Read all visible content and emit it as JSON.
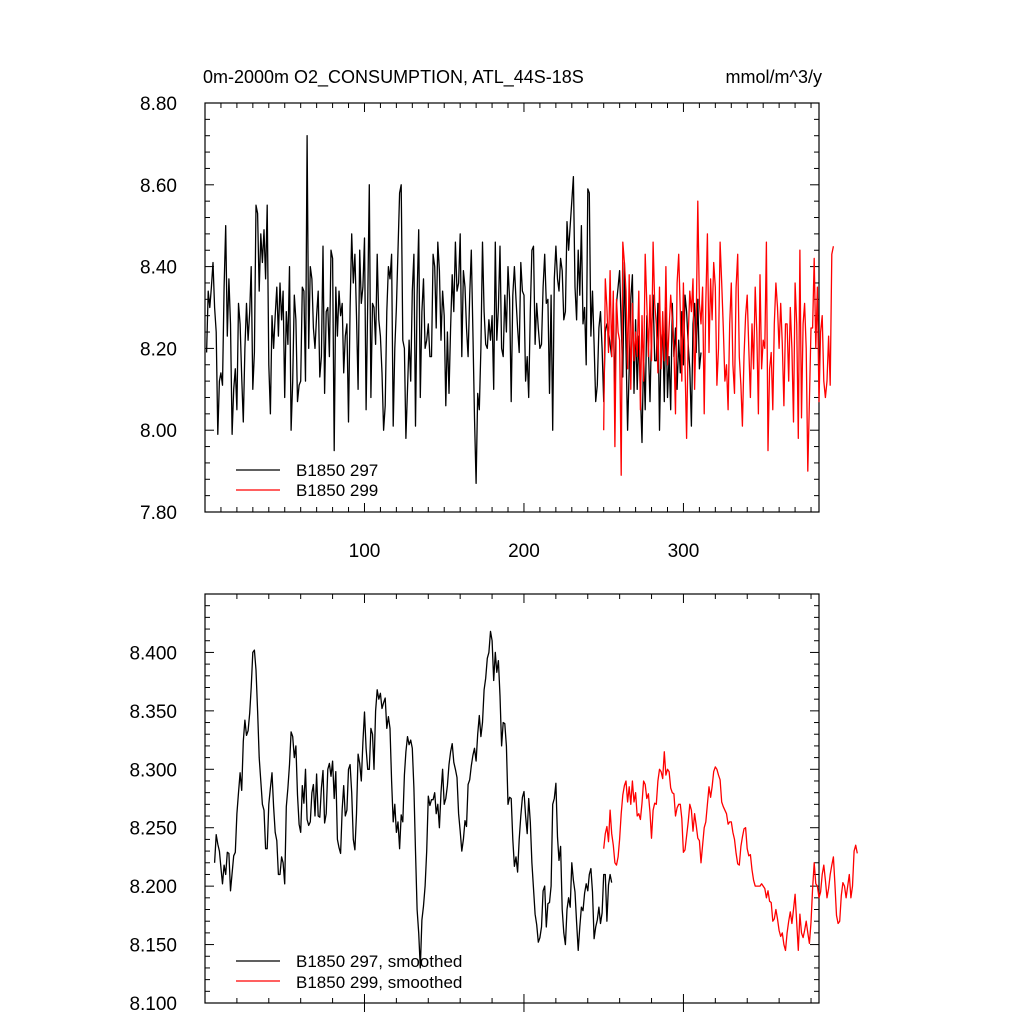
{
  "chart_data": [
    {
      "type": "line",
      "title": "0m-2000m O2_CONSUMPTION, ATL_44S-18S",
      "units": "mmol/m^3/y",
      "xlim": [
        0,
        385
      ],
      "ylim": [
        7.8,
        8.8
      ],
      "xticks": [
        100,
        200,
        300
      ],
      "xtick_labels": [
        "100",
        "200",
        "300"
      ],
      "yticks": [
        7.8,
        8.0,
        8.2,
        8.4,
        8.6,
        8.8
      ],
      "ytick_labels": [
        "7.80",
        "8.00",
        "8.20",
        "8.40",
        "8.60",
        "8.80"
      ],
      "legend_position": "bottom-left",
      "series": [
        {
          "name": "B1850 297",
          "color": "#000000",
          "x_start": 1,
          "values": [
            8.19,
            8.34,
            8.3,
            8.35,
            8.41,
            8.3,
            8.24,
            7.99,
            8.12,
            8.14,
            8.11,
            8.35,
            8.5,
            8.23,
            8.37,
            8.26,
            7.99,
            8.1,
            8.15,
            8.05,
            8.31,
            8.26,
            8.13,
            8.02,
            8.2,
            8.31,
            8.22,
            8.29,
            8.4,
            8.1,
            8.19,
            8.55,
            8.53,
            8.34,
            8.48,
            8.41,
            8.49,
            8.37,
            8.55,
            8.16,
            8.04,
            8.28,
            8.2,
            8.28,
            8.35,
            8.23,
            8.36,
            8.27,
            8.34,
            8.08,
            8.29,
            8.21,
            8.4,
            8.0,
            8.12,
            8.33,
            8.27,
            8.07,
            8.11,
            8.12,
            8.35,
            8.34,
            8.12,
            8.72,
            8.2,
            8.4,
            8.37,
            8.25,
            8.2,
            8.28,
            8.34,
            8.13,
            8.18,
            8.45,
            8.09,
            8.29,
            8.3,
            8.18,
            8.44,
            8.42,
            7.95,
            8.35,
            8.23,
            8.34,
            8.28,
            8.31,
            8.14,
            8.23,
            8.26,
            8.02,
            8.3,
            8.48,
            8.36,
            8.43,
            8.28,
            8.1,
            8.44,
            8.31,
            8.35,
            8.47,
            8.05,
            8.31,
            8.6,
            8.08,
            8.31,
            8.3,
            8.21,
            8.43,
            8.27,
            8.23,
            8.14,
            8.0,
            8.06,
            8.29,
            8.4,
            8.37,
            8.43,
            8.01,
            8.2,
            8.3,
            8.44,
            8.58,
            8.6,
            8.22,
            8.2,
            7.98,
            8.1,
            8.22,
            8.12,
            8.34,
            8.43,
            8.01,
            8.33,
            8.49,
            8.08,
            8.29,
            8.37,
            8.2,
            8.22,
            8.26,
            8.18,
            8.18,
            8.43,
            8.4,
            8.25,
            8.46,
            8.39,
            8.22,
            8.34,
            8.28,
            8.06,
            8.24,
            8.09,
            8.25,
            8.38,
            8.29,
            8.46,
            8.34,
            8.36,
            8.48,
            8.18,
            8.39,
            8.35,
            8.25,
            8.18,
            8.33,
            8.44,
            8.24,
            8.03,
            7.87,
            8.09,
            8.05,
            8.2,
            8.46,
            8.29,
            8.21,
            8.2,
            8.27,
            8.22,
            8.28,
            8.1,
            8.46,
            8.22,
            8.3,
            8.45,
            8.2,
            8.18,
            8.33,
            8.24,
            8.4,
            8.32,
            8.07,
            8.33,
            8.4,
            8.32,
            8.25,
            8.19,
            8.41,
            8.34,
            8.33,
            8.12,
            8.18,
            8.08,
            8.29,
            8.44,
            8.45,
            8.21,
            8.31,
            8.25,
            8.2,
            8.21,
            8.35,
            8.43,
            8.31,
            8.32,
            8.09,
            8.33,
            8.0,
            8.37,
            8.45,
            8.37,
            8.34,
            8.42,
            8.39,
            8.27,
            8.29,
            8.51,
            8.44,
            8.5,
            8.56,
            8.62,
            8.35,
            8.27,
            8.44,
            8.33,
            8.5,
            8.26,
            8.3,
            8.16,
            8.59,
            8.58,
            8.23,
            8.34,
            8.21,
            8.07,
            8.11,
            8.25,
            8.29,
            8.2,
            8.07,
            8.24,
            8.26,
            8.24,
            8.21,
            8.18,
            8.3,
            8.09,
            8.31,
            8.35,
            8.39,
            8.26,
            8.13,
            8.41,
            8.2,
            8.0,
            8.15,
            8.32,
            8.38,
            8.09,
            8.27,
            8.1,
            8.23,
            8.09,
            7.97,
            8.19,
            8.05,
            8.28,
            8.2,
            8.07,
            8.24,
            8.33,
            8.17,
            8.17,
            8.31,
            8.0,
            8.21,
            8.25,
            8.07,
            8.3,
            8.08,
            8.18,
            8.05,
            8.31,
            8.18,
            8.25,
            8.1,
            8.22,
            8.14,
            8.29,
            8.16,
            8.33,
            8.29,
            8.21,
            8.15,
            8.01,
            8.26,
            8.31,
            8.19,
            8.32,
            8.15,
            8.19
          ]
        },
        {
          "name": "B1850 299",
          "color": "#ff0000",
          "x_start": 250,
          "values": [
            8.0,
            8.37,
            8.3,
            8.19,
            8.39,
            8.18,
            8.34,
            7.96,
            8.32,
            8.24,
            8.22,
            7.89,
            8.46,
            8.41,
            8.34,
            8.15,
            8.38,
            8.1,
            8.31,
            8.17,
            8.24,
            8.18,
            8.34,
            8.05,
            8.28,
            8.12,
            8.43,
            8.31,
            8.18,
            8.33,
            8.17,
            8.46,
            8.31,
            8.26,
            8.14,
            8.35,
            8.15,
            8.29,
            8.17,
            8.4,
            8.16,
            8.25,
            8.33,
            8.27,
            8.2,
            8.04,
            8.36,
            8.43,
            8.29,
            8.12,
            8.36,
            8.16,
            7.98,
            8.23,
            8.34,
            8.29,
            8.37,
            8.1,
            8.26,
            8.56,
            8.31,
            8.26,
            8.35,
            8.04,
            8.31,
            8.48,
            8.19,
            8.37,
            8.27,
            8.41,
            8.35,
            8.11,
            8.2,
            8.46,
            8.36,
            8.25,
            8.12,
            8.16,
            8.05,
            8.26,
            8.36,
            8.16,
            8.09,
            8.35,
            8.43,
            8.18,
            8.11,
            8.01,
            8.18,
            8.28,
            8.33,
            8.2,
            8.08,
            8.26,
            8.15,
            8.35,
            8.24,
            8.04,
            8.38,
            8.15,
            8.22,
            8.2,
            8.46,
            7.95,
            8.15,
            8.19,
            8.05,
            8.26,
            8.36,
            8.3,
            8.2,
            8.31,
            8.21,
            8.06,
            8.26,
            8.26,
            8.12,
            8.3,
            8.2,
            8.02,
            8.36,
            8.26,
            7.98,
            8.44,
            8.03,
            8.26,
            8.31,
            8.2,
            7.9,
            8.07,
            8.25,
            8.25,
            8.42,
            8.2,
            8.35,
            8.07,
            8.24,
            8.28,
            8.12,
            8.08,
            8.12,
            8.23,
            8.11,
            8.43,
            8.45
          ]
        }
      ]
    },
    {
      "type": "line",
      "title": "",
      "xlim": [
        0,
        385
      ],
      "ylim": [
        8.1,
        8.45
      ],
      "xticks": [
        100,
        200,
        300
      ],
      "yticks": [
        8.1,
        8.15,
        8.2,
        8.25,
        8.3,
        8.35,
        8.4
      ],
      "ytick_labels": [
        "8.100",
        "8.150",
        "8.200",
        "8.250",
        "8.300",
        "8.350",
        "8.400"
      ],
      "legend_position": "bottom-left",
      "series": [
        {
          "name": "B1850 297, smoothed",
          "color": "#000000",
          "x_start": 6,
          "values": [
            8.22,
            8.244,
            8.236,
            8.23,
            8.216,
            8.202,
            8.218,
            8.21,
            8.229,
            8.228,
            8.196,
            8.211,
            8.226,
            8.229,
            8.262,
            8.28,
            8.297,
            8.282,
            8.324,
            8.342,
            8.329,
            8.333,
            8.348,
            8.37,
            8.4,
            8.402,
            8.385,
            8.35,
            8.31,
            8.29,
            8.27,
            8.265,
            8.232,
            8.232,
            8.27,
            8.284,
            8.297,
            8.268,
            8.246,
            8.239,
            8.21,
            8.21,
            8.225,
            8.22,
            8.202,
            8.268,
            8.284,
            8.304,
            8.332,
            8.328,
            8.31,
            8.32,
            8.278,
            8.253,
            8.246,
            8.286,
            8.271,
            8.3,
            8.257,
            8.252,
            8.255,
            8.28,
            8.287,
            8.26,
            8.296,
            8.26,
            8.259,
            8.284,
            8.299,
            8.254,
            8.262,
            8.3,
            8.305,
            8.294,
            8.307,
            8.275,
            8.298,
            8.24,
            8.233,
            8.228,
            8.266,
            8.286,
            8.26,
            8.265,
            8.3,
            8.304,
            8.28,
            8.24,
            8.231,
            8.262,
            8.313,
            8.305,
            8.29,
            8.323,
            8.349,
            8.318,
            8.3,
            8.3,
            8.335,
            8.33,
            8.3,
            8.35,
            8.368,
            8.36,
            8.365,
            8.352,
            8.357,
            8.361,
            8.335,
            8.345,
            8.335,
            8.29,
            8.255,
            8.27,
            8.246,
            8.255,
            8.232,
            8.261,
            8.255,
            8.295,
            8.315,
            8.328,
            8.321,
            8.325,
            8.318,
            8.284,
            8.23,
            8.18,
            8.16,
            8.13,
            8.171,
            8.183,
            8.2,
            8.23,
            8.277,
            8.269,
            8.274,
            8.274,
            8.28,
            8.262,
            8.27,
            8.25,
            8.28,
            8.3,
            8.27,
            8.275,
            8.286,
            8.304,
            8.315,
            8.322,
            8.306,
            8.3,
            8.293,
            8.262,
            8.247,
            8.23,
            8.24,
            8.256,
            8.251,
            8.287,
            8.291,
            8.303,
            8.312,
            8.318,
            8.307,
            8.33,
            8.346,
            8.328,
            8.34,
            8.368,
            8.378,
            8.395,
            8.4,
            8.418,
            8.41,
            8.376,
            8.4,
            8.383,
            8.393,
            8.363,
            8.32,
            8.34,
            8.339,
            8.32,
            8.27,
            8.276,
            8.275,
            8.24,
            8.217,
            8.225,
            8.212,
            8.24,
            8.26,
            8.276,
            8.281,
            8.26,
            8.245,
            8.275,
            8.255,
            8.22,
            8.198,
            8.176,
            8.167,
            8.152,
            8.156,
            8.165,
            8.196,
            8.2,
            8.165,
            8.185,
            8.186,
            8.2,
            8.27,
            8.275,
            8.288,
            8.242,
            8.222,
            8.234,
            8.18,
            8.16,
            8.15,
            8.18,
            8.19,
            8.182,
            8.22,
            8.205,
            8.195,
            8.169,
            8.145,
            8.165,
            8.182,
            8.179,
            8.194,
            8.202,
            8.196,
            8.21,
            8.215,
            8.195,
            8.155,
            8.165,
            8.171,
            8.182,
            8.168,
            8.177,
            8.21,
            8.21,
            8.17,
            8.201,
            8.21,
            8.203
          ]
        },
        {
          "name": "B1850 299, smoothed",
          "color": "#ff0000",
          "x_start": 250,
          "values": [
            8.232,
            8.245,
            8.251,
            8.238,
            8.265,
            8.245,
            8.235,
            8.22,
            8.218,
            8.225,
            8.24,
            8.262,
            8.278,
            8.286,
            8.29,
            8.272,
            8.285,
            8.27,
            8.29,
            8.272,
            8.28,
            8.26,
            8.262,
            8.257,
            8.271,
            8.29,
            8.287,
            8.275,
            8.279,
            8.263,
            8.241,
            8.265,
            8.271,
            8.27,
            8.29,
            8.3,
            8.298,
            8.292,
            8.315,
            8.295,
            8.3,
            8.298,
            8.284,
            8.28,
            8.279,
            8.26,
            8.267,
            8.27,
            8.27,
            8.258,
            8.229,
            8.231,
            8.243,
            8.255,
            8.27,
            8.265,
            8.247,
            8.262,
            8.252,
            8.241,
            8.239,
            8.22,
            8.235,
            8.25,
            8.255,
            8.27,
            8.285,
            8.276,
            8.285,
            8.298,
            8.302,
            8.3,
            8.295,
            8.291,
            8.272,
            8.268,
            8.265,
            8.262,
            8.253,
            8.255,
            8.255,
            8.246,
            8.24,
            8.228,
            8.219,
            8.218,
            8.234,
            8.242,
            8.249,
            8.25,
            8.232,
            8.226,
            8.227,
            8.214,
            8.205,
            8.2,
            8.2,
            8.2,
            8.2,
            8.202,
            8.2,
            8.198,
            8.19,
            8.196,
            8.187,
            8.186,
            8.17,
            8.172,
            8.18,
            8.172,
            8.162,
            8.157,
            8.16,
            8.15,
            8.145,
            8.16,
            8.17,
            8.178,
            8.168,
            8.18,
            8.193,
            8.169,
            8.145,
            8.176,
            8.16,
            8.156,
            8.162,
            8.17,
            8.16,
            8.151,
            8.169,
            8.198,
            8.22,
            8.202,
            8.2,
            8.19,
            8.195,
            8.21,
            8.218,
            8.205,
            8.19,
            8.198,
            8.21,
            8.218,
            8.225,
            8.202,
            8.175,
            8.168,
            8.17,
            8.192,
            8.203,
            8.2,
            8.19,
            8.2,
            8.21,
            8.19,
            8.2,
            8.23,
            8.235,
            8.228
          ]
        }
      ]
    }
  ]
}
